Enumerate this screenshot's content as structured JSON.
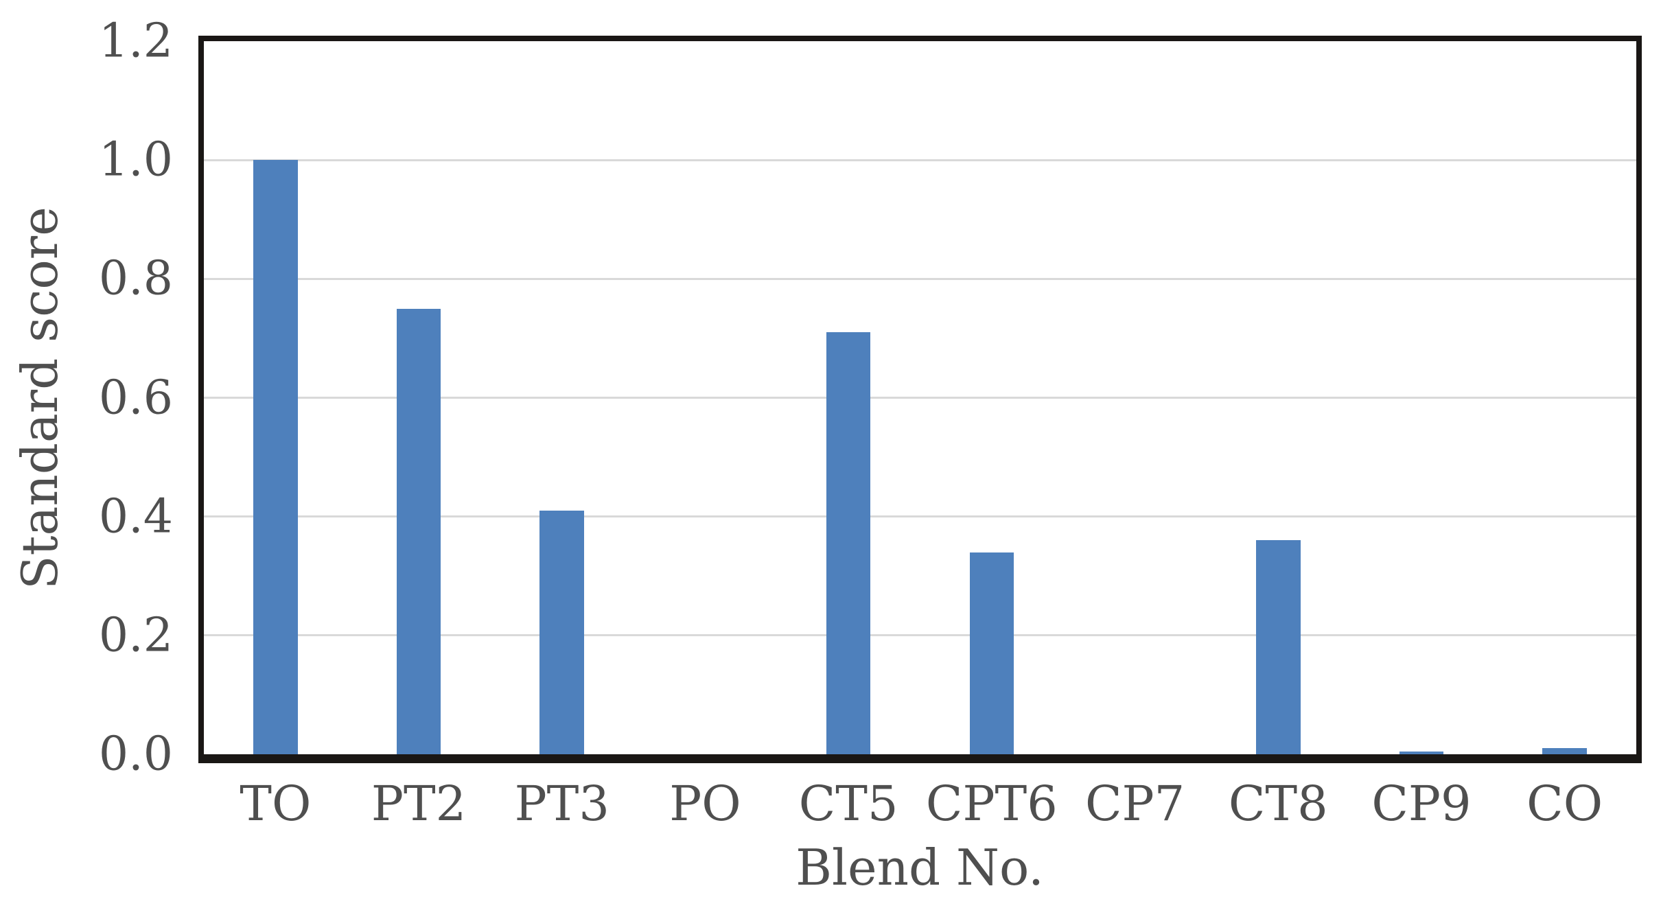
{
  "chart_data": {
    "type": "bar",
    "title": "",
    "xlabel": "Blend No.",
    "ylabel": "Standard score",
    "categories": [
      "TO",
      "PT2",
      "PT3",
      "PO",
      "CT5",
      "CPT6",
      "CP7",
      "CT8",
      "CP9",
      "CO"
    ],
    "values": [
      1.0,
      0.75,
      0.41,
      0,
      0.71,
      0.34,
      0,
      0.36,
      0.005,
      0.01
    ],
    "ylim": [
      0,
      1.2
    ],
    "yticks": [
      {
        "value": 0.0,
        "label": "0.0"
      },
      {
        "value": 0.2,
        "label": "0.2"
      },
      {
        "value": 0.4,
        "label": "0.4"
      },
      {
        "value": 0.6,
        "label": "0.6"
      },
      {
        "value": 0.8,
        "label": "0.8"
      },
      {
        "value": 1.0,
        "label": "1.0"
      },
      {
        "value": 1.2,
        "label": "1.2"
      }
    ],
    "gridline_values": [
      0.2,
      0.4,
      0.6,
      0.8,
      1.0
    ],
    "grid": "horizontal-only",
    "legend": "none",
    "colors": {
      "bar": "#4e80bc",
      "gridline": "#d9d9d9",
      "frame": "#1a1715",
      "text": "#4f4f4f",
      "background": "#ffffff"
    }
  }
}
